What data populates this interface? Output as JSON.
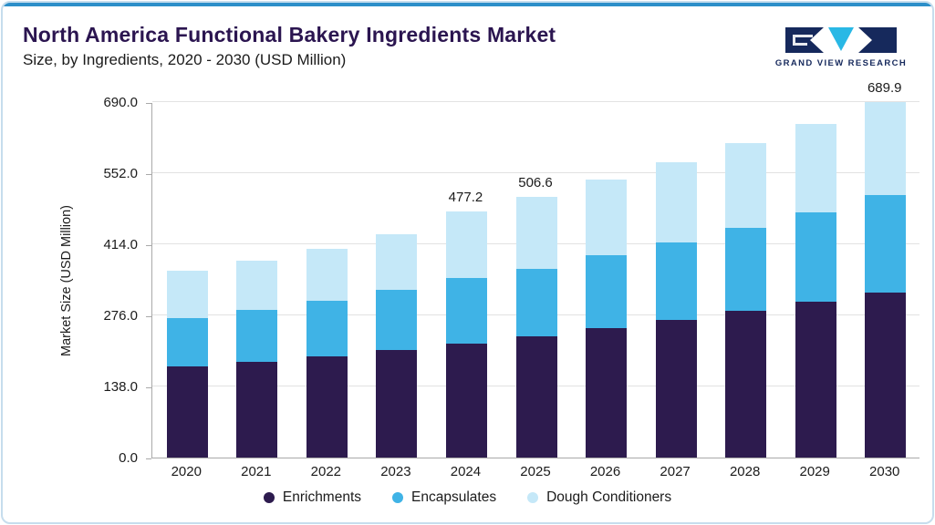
{
  "header": {
    "title": "North America Functional Bakery Ingredients Market",
    "subtitle": "Size, by Ingredients, 2020 - 2030 (USD Million)",
    "logo_text": "GRAND VIEW RESEARCH"
  },
  "colors": {
    "accent_top": "#2c8fc9",
    "frame_border": "#c6dded",
    "title": "#2b1550",
    "logo_navy": "#16295c",
    "logo_cyan": "#29b8e5"
  },
  "chart_data": {
    "type": "bar",
    "stacked": true,
    "title": "North America Functional Bakery Ingredients Market Size, by Ingredients, 2020 - 2030 (USD Million)",
    "ylabel": "Market Size (USD Million)",
    "xlabel": "",
    "ylim": [
      0,
      690
    ],
    "grid": true,
    "legend_position": "bottom",
    "y_ticks": [
      0,
      138,
      276,
      414,
      552,
      690
    ],
    "y_tick_labels": [
      "0.0",
      "138.0",
      "276.0",
      "414.0",
      "552.0",
      "690.0"
    ],
    "categories": [
      "2020",
      "2021",
      "2022",
      "2023",
      "2024",
      "2025",
      "2026",
      "2027",
      "2028",
      "2029",
      "2030"
    ],
    "series": [
      {
        "name": "Enrichments",
        "color": "#2d1b4e",
        "values": [
          176,
          186,
          197,
          209,
          222.0,
          235.0,
          251,
          267,
          284,
          302,
          321.0
        ]
      },
      {
        "name": "Encapsulates",
        "color": "#3fb3e6",
        "values": [
          95,
          101,
          107,
          116,
          126.0,
          131.0,
          141,
          151,
          162,
          174,
          189.0
        ]
      },
      {
        "name": "Dough Conditioners",
        "color": "#c5e8f8",
        "values": [
          91,
          95,
          101,
          108,
          129.2,
          140.6,
          147,
          155,
          164,
          172,
          179.9
        ]
      }
    ],
    "value_labels": [
      "",
      "",
      "",
      "",
      "477.2",
      "506.6",
      "",
      "",
      "",
      "",
      "689.9"
    ]
  }
}
